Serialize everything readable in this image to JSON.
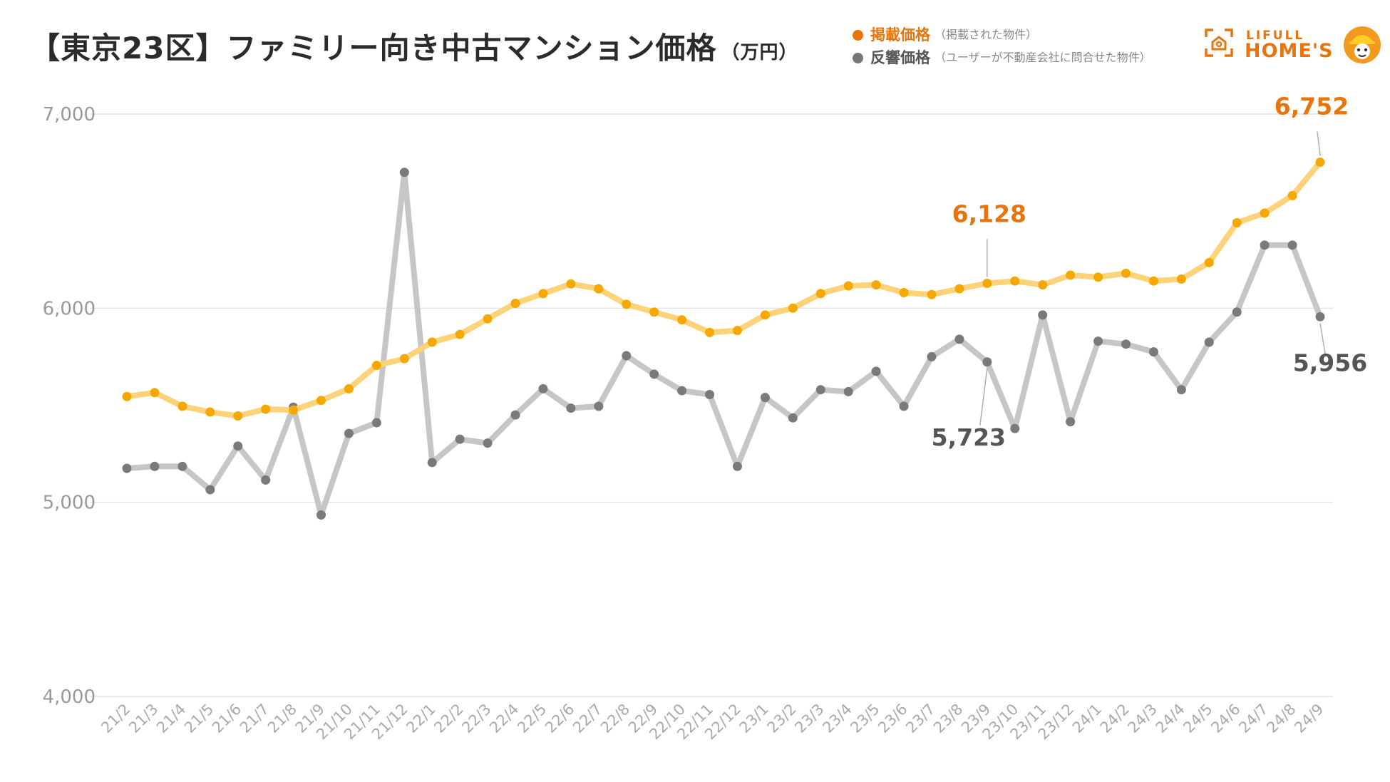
{
  "header": {
    "title": "【東京23区】ファミリー向き中古マンション価格",
    "unit": "（万円）"
  },
  "legend": {
    "listed": {
      "name": "掲載価格",
      "note": "（掲載された物件）",
      "color": "#e8740c"
    },
    "response": {
      "name": "反響価格",
      "note": "（ユーザーが不動産会社に問合せた物件）",
      "color": "#777777"
    }
  },
  "logo": {
    "top": "LIFULL",
    "bottom": "HOME'S"
  },
  "chart_data": {
    "type": "line",
    "title": "【東京23区】ファミリー向き中古マンション価格（万円）",
    "xlabel": "",
    "ylabel": "",
    "ylim": [
      4000,
      7000
    ],
    "yticks": [
      4000,
      5000,
      6000,
      7000
    ],
    "ytick_labels": [
      "4,000",
      "5,000",
      "6,000",
      "7,000"
    ],
    "grid": true,
    "legend_position": "top-right",
    "categories": [
      "21/2",
      "21/3",
      "21/4",
      "21/5",
      "21/6",
      "21/7",
      "21/8",
      "21/9",
      "21/10",
      "21/11",
      "21/12",
      "22/1",
      "22/2",
      "22/3",
      "22/4",
      "22/5",
      "22/6",
      "22/7",
      "22/8",
      "22/9",
      "22/10",
      "22/11",
      "22/12",
      "23/1",
      "23/2",
      "23/3",
      "23/4",
      "23/5",
      "23/6",
      "23/7",
      "23/8",
      "23/9",
      "23/10",
      "23/11",
      "23/12",
      "24/1",
      "24/2",
      "24/3",
      "24/4",
      "24/5",
      "24/6",
      "24/7",
      "24/8",
      "24/9"
    ],
    "series": [
      {
        "name": "掲載価格",
        "line_color": "#fdd37a",
        "marker_color": "#f6a800",
        "values": [
          5545,
          5565,
          5495,
          5465,
          5445,
          5480,
          5475,
          5525,
          5585,
          5705,
          5740,
          5825,
          5865,
          5945,
          6025,
          6075,
          6125,
          6100,
          6020,
          5980,
          5940,
          5875,
          5885,
          5965,
          6000,
          6075,
          6115,
          6120,
          6080,
          6070,
          6100,
          6128,
          6140,
          6120,
          6170,
          6160,
          6180,
          6140,
          6150,
          6235,
          6440,
          6490,
          6580,
          6752
        ]
      },
      {
        "name": "反響価格",
        "line_color": "#c6c6c6",
        "marker_color": "#7a7a7a",
        "values": [
          5175,
          5185,
          5185,
          5065,
          5290,
          5115,
          5490,
          4935,
          5355,
          5410,
          6700,
          5205,
          5325,
          5305,
          5450,
          5585,
          5485,
          5495,
          5755,
          5660,
          5575,
          5555,
          5185,
          5540,
          5435,
          5580,
          5570,
          5675,
          5495,
          5750,
          5840,
          5723,
          5380,
          5965,
          5415,
          5830,
          5815,
          5775,
          5580,
          5825,
          5980,
          6325,
          6325,
          5956
        ]
      }
    ],
    "annotations": [
      {
        "label": "6,752",
        "series": 0,
        "index": 43,
        "color": "#e8740c"
      },
      {
        "label": "6,128",
        "series": 0,
        "index": 31,
        "color": "#e8740c"
      },
      {
        "label": "5,956",
        "series": 1,
        "index": 43,
        "color": "#555555"
      },
      {
        "label": "5,723",
        "series": 1,
        "index": 31,
        "color": "#555555"
      }
    ]
  }
}
